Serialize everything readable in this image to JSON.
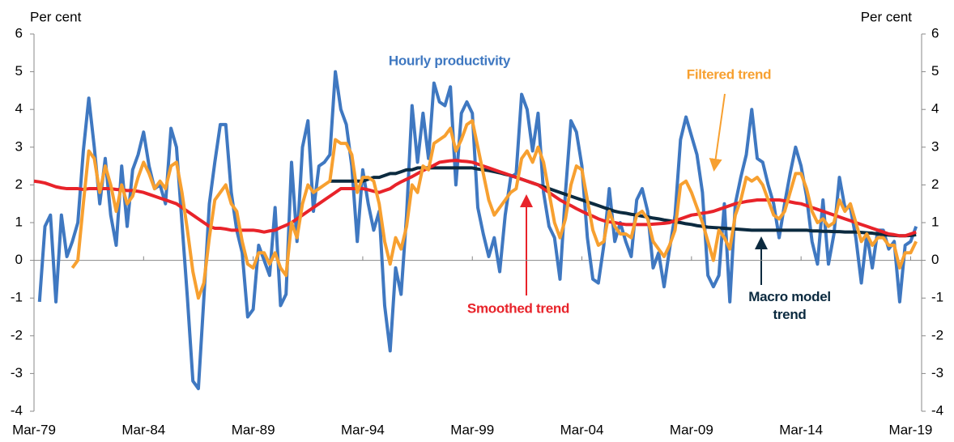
{
  "chart_data": {
    "type": "line",
    "y_label": "Per cent",
    "y2_label": "Per cent",
    "categories": [
      "Mar-79",
      null,
      null,
      null,
      null,
      null,
      null,
      null,
      null,
      null,
      null,
      null,
      null,
      null,
      null,
      null,
      null,
      null,
      null,
      null,
      "Mar-84",
      null,
      null,
      null,
      null,
      null,
      null,
      null,
      null,
      null,
      null,
      null,
      null,
      null,
      null,
      null,
      null,
      null,
      null,
      null,
      "Mar-89",
      null,
      null,
      null,
      null,
      null,
      null,
      null,
      null,
      null,
      null,
      null,
      null,
      null,
      null,
      null,
      null,
      null,
      null,
      null,
      "Mar-94",
      null,
      null,
      null,
      null,
      null,
      null,
      null,
      null,
      null,
      null,
      null,
      null,
      null,
      null,
      null,
      null,
      null,
      null,
      null,
      "Mar-99",
      null,
      null,
      null,
      null,
      null,
      null,
      null,
      null,
      null,
      null,
      null,
      null,
      null,
      null,
      null,
      null,
      null,
      null,
      null,
      "Mar-04",
      null,
      null,
      null,
      null,
      null,
      null,
      null,
      null,
      null,
      null,
      null,
      null,
      null,
      null,
      null,
      null,
      null,
      null,
      null,
      "Mar-09",
      null,
      null,
      null,
      null,
      null,
      null,
      null,
      null,
      null,
      null,
      null,
      null,
      null,
      null,
      null,
      null,
      null,
      null,
      null,
      "Mar-14",
      null,
      null,
      null,
      null,
      null,
      null,
      null,
      null,
      null,
      null,
      null,
      null,
      null,
      null,
      null,
      null,
      null,
      null,
      null,
      "Mar-19",
      null
    ],
    "series": [
      {
        "name": "Hourly productivity",
        "color": "#3f78c1",
        "values": [
          null,
          -1.1,
          0.9,
          1.2,
          -1.1,
          1.2,
          0.1,
          0.5,
          1.0,
          2.9,
          4.3,
          3.0,
          1.5,
          2.7,
          1.2,
          0.4,
          2.5,
          0.9,
          2.4,
          2.8,
          3.4,
          2.5,
          1.9,
          2.0,
          1.5,
          3.5,
          3.0,
          1.0,
          -1.0,
          -3.2,
          -3.4,
          -1.0,
          1.5,
          2.6,
          3.6,
          3.6,
          1.8,
          0.8,
          0.2,
          -1.5,
          -1.3,
          0.4,
          0.0,
          -0.4,
          1.4,
          -1.2,
          -0.9,
          2.6,
          0.5,
          3.0,
          3.7,
          1.3,
          2.5,
          2.6,
          2.8,
          5.0,
          4.0,
          3.6,
          2.5,
          0.5,
          2.4,
          1.5,
          0.8,
          1.3,
          -1.2,
          -2.4,
          -0.2,
          -0.9,
          1.2,
          4.1,
          2.6,
          3.9,
          2.7,
          4.7,
          4.2,
          4.1,
          4.6,
          2.0,
          3.9,
          4.2,
          3.9,
          1.4,
          0.7,
          0.1,
          0.6,
          -0.3,
          1.2,
          2.2,
          2.3,
          4.4,
          4.0,
          2.9,
          3.9,
          1.8,
          0.9,
          0.6,
          -0.5,
          1.8,
          3.7,
          3.4,
          2.5,
          0.6,
          -0.5,
          -0.6,
          0.4,
          1.9,
          0.5,
          1.0,
          0.5,
          0.1,
          1.6,
          1.9,
          1.3,
          -0.2,
          0.2,
          -0.7,
          0.3,
          1.2,
          3.2,
          3.8,
          3.3,
          2.8,
          1.8,
          -0.4,
          -0.7,
          -0.4,
          1.5,
          -1.1,
          1.5,
          2.2,
          2.8,
          4.0,
          2.7,
          2.6,
          2.0,
          1.5,
          0.6,
          1.5,
          2.3,
          3.0,
          2.5,
          1.7,
          0.5,
          -0.1,
          1.6,
          -0.1,
          0.7,
          2.2,
          1.4,
          1.4,
          0.6,
          -0.6,
          0.7,
          -0.2,
          0.8,
          0.8,
          0.3,
          0.5,
          -1.1,
          0.4,
          0.5,
          0.9
        ]
      },
      {
        "name": "Macro model trend",
        "color": "#0b2a3f",
        "values": [
          null,
          null,
          null,
          null,
          null,
          null,
          null,
          null,
          null,
          null,
          null,
          null,
          null,
          null,
          null,
          null,
          null,
          null,
          null,
          null,
          null,
          null,
          null,
          null,
          null,
          null,
          null,
          null,
          null,
          null,
          null,
          null,
          null,
          null,
          null,
          null,
          null,
          null,
          null,
          null,
          null,
          null,
          null,
          null,
          null,
          null,
          null,
          null,
          null,
          null,
          null,
          null,
          null,
          null,
          2.1,
          2.1,
          2.1,
          2.1,
          2.1,
          2.1,
          2.1,
          2.15,
          2.2,
          2.2,
          2.25,
          2.3,
          2.3,
          2.35,
          2.4,
          2.4,
          2.45,
          2.45,
          2.45,
          2.45,
          2.45,
          2.45,
          2.45,
          2.45,
          2.45,
          2.45,
          2.45,
          2.42,
          2.4,
          2.38,
          2.35,
          2.32,
          2.28,
          2.25,
          2.2,
          2.15,
          2.1,
          2.05,
          2.0,
          1.95,
          1.9,
          1.85,
          1.8,
          1.75,
          1.7,
          1.65,
          1.6,
          1.55,
          1.5,
          1.45,
          1.4,
          1.35,
          1.3,
          1.27,
          1.25,
          1.22,
          1.2,
          1.17,
          1.15,
          1.12,
          1.1,
          1.07,
          1.05,
          1.02,
          1.0,
          0.97,
          0.95,
          0.92,
          0.9,
          0.88,
          0.87,
          0.86,
          0.85,
          0.84,
          0.83,
          0.82,
          0.81,
          0.8,
          0.8,
          0.8,
          0.8,
          0.8,
          0.8,
          0.8,
          0.8,
          0.8,
          0.8,
          0.8,
          0.78,
          0.78,
          0.77,
          0.77,
          0.76,
          0.76,
          0.75,
          0.75,
          0.75,
          0.74,
          0.73,
          0.72,
          0.7,
          0.68,
          0.67,
          0.66,
          0.65,
          0.65,
          0.66,
          0.68
        ]
      },
      {
        "name": "Smoothed trend",
        "color": "#e8232a",
        "values": [
          2.1,
          2.08,
          2.05,
          2.0,
          1.95,
          1.92,
          1.9,
          1.9,
          1.9,
          1.88,
          1.9,
          1.9,
          1.9,
          1.9,
          1.9,
          1.88,
          1.87,
          1.85,
          1.85,
          1.83,
          1.8,
          1.75,
          1.7,
          1.65,
          1.6,
          1.55,
          1.5,
          1.4,
          1.3,
          1.2,
          1.1,
          1.0,
          0.9,
          0.85,
          0.85,
          0.83,
          0.8,
          0.8,
          0.8,
          0.8,
          0.8,
          0.78,
          0.75,
          0.78,
          0.8,
          0.87,
          0.93,
          1.0,
          1.1,
          1.2,
          1.3,
          1.4,
          1.5,
          1.6,
          1.7,
          1.8,
          1.9,
          1.9,
          1.9,
          1.9,
          1.9,
          1.87,
          1.83,
          1.8,
          1.85,
          1.9,
          2.0,
          2.08,
          2.15,
          2.22,
          2.3,
          2.38,
          2.45,
          2.52,
          2.6,
          2.62,
          2.64,
          2.65,
          2.63,
          2.62,
          2.6,
          2.55,
          2.5,
          2.45,
          2.4,
          2.35,
          2.3,
          2.25,
          2.2,
          2.15,
          2.1,
          2.05,
          2.0,
          1.9,
          1.8,
          1.7,
          1.6,
          1.52,
          1.45,
          1.37,
          1.3,
          1.23,
          1.17,
          1.1,
          1.05,
          1.02,
          1.0,
          0.97,
          0.95,
          0.95,
          0.95,
          0.95,
          0.95,
          0.96,
          0.97,
          0.98,
          1.0,
          1.05,
          1.1,
          1.15,
          1.2,
          1.22,
          1.25,
          1.27,
          1.3,
          1.35,
          1.4,
          1.45,
          1.5,
          1.53,
          1.56,
          1.58,
          1.6,
          1.6,
          1.6,
          1.6,
          1.6,
          1.58,
          1.55,
          1.52,
          1.5,
          1.45,
          1.4,
          1.35,
          1.3,
          1.25,
          1.2,
          1.15,
          1.1,
          1.05,
          1.0,
          0.95,
          0.9,
          0.85,
          0.8,
          0.75,
          0.7,
          0.68,
          0.65,
          0.65,
          0.7,
          0.75
        ]
      },
      {
        "name": "Filtered trend",
        "color": "#f7a030",
        "values": [
          null,
          null,
          null,
          null,
          null,
          null,
          null,
          -0.2,
          0.0,
          1.5,
          2.9,
          2.7,
          1.8,
          2.5,
          2.0,
          1.3,
          2.0,
          1.5,
          1.7,
          2.2,
          2.6,
          2.3,
          1.9,
          2.1,
          1.9,
          2.5,
          2.6,
          1.8,
          0.8,
          -0.3,
          -1.0,
          -0.6,
          0.6,
          1.6,
          1.8,
          2.0,
          1.5,
          1.3,
          0.5,
          -0.1,
          -0.2,
          0.2,
          0.2,
          -0.1,
          0.2,
          -0.2,
          -0.4,
          1.0,
          0.6,
          1.5,
          2.0,
          1.8,
          1.9,
          2.0,
          2.1,
          3.2,
          3.1,
          3.1,
          2.8,
          1.8,
          2.2,
          2.2,
          2.1,
          1.5,
          0.5,
          -0.1,
          0.6,
          0.3,
          0.9,
          2.0,
          1.8,
          2.5,
          2.4,
          3.1,
          3.2,
          3.3,
          3.5,
          2.9,
          3.2,
          3.6,
          3.7,
          3.0,
          2.3,
          1.6,
          1.2,
          1.4,
          1.6,
          1.8,
          1.9,
          2.7,
          2.9,
          2.6,
          3.0,
          2.6,
          1.8,
          1.0,
          0.6,
          1.1,
          2.0,
          2.5,
          2.4,
          1.6,
          0.8,
          0.4,
          0.5,
          1.3,
          0.9,
          0.7,
          0.7,
          0.6,
          1.2,
          1.3,
          1.1,
          0.5,
          0.3,
          0.1,
          0.4,
          0.8,
          2.0,
          2.1,
          1.8,
          1.4,
          1.0,
          0.5,
          0.0,
          0.8,
          0.6,
          0.3,
          1.2,
          1.6,
          2.2,
          2.1,
          2.2,
          2.0,
          1.6,
          1.2,
          1.1,
          1.3,
          1.8,
          2.3,
          2.3,
          1.9,
          1.3,
          1.0,
          1.1,
          0.9,
          1.0,
          1.6,
          1.3,
          1.5,
          1.0,
          0.5,
          0.7,
          0.4,
          0.6,
          0.6,
          0.4,
          0.4,
          -0.2,
          0.2,
          0.2,
          0.5
        ]
      }
    ],
    "ylim": [
      -4,
      6
    ],
    "yticks": [
      -4,
      -3,
      -2,
      -1,
      0,
      1,
      2,
      3,
      4,
      5,
      6
    ],
    "y2lim": [
      -4,
      6
    ],
    "y2ticks": [
      -4,
      -3,
      -2,
      -1,
      0,
      1,
      2,
      3,
      4,
      5,
      6
    ],
    "grid": false
  }
}
